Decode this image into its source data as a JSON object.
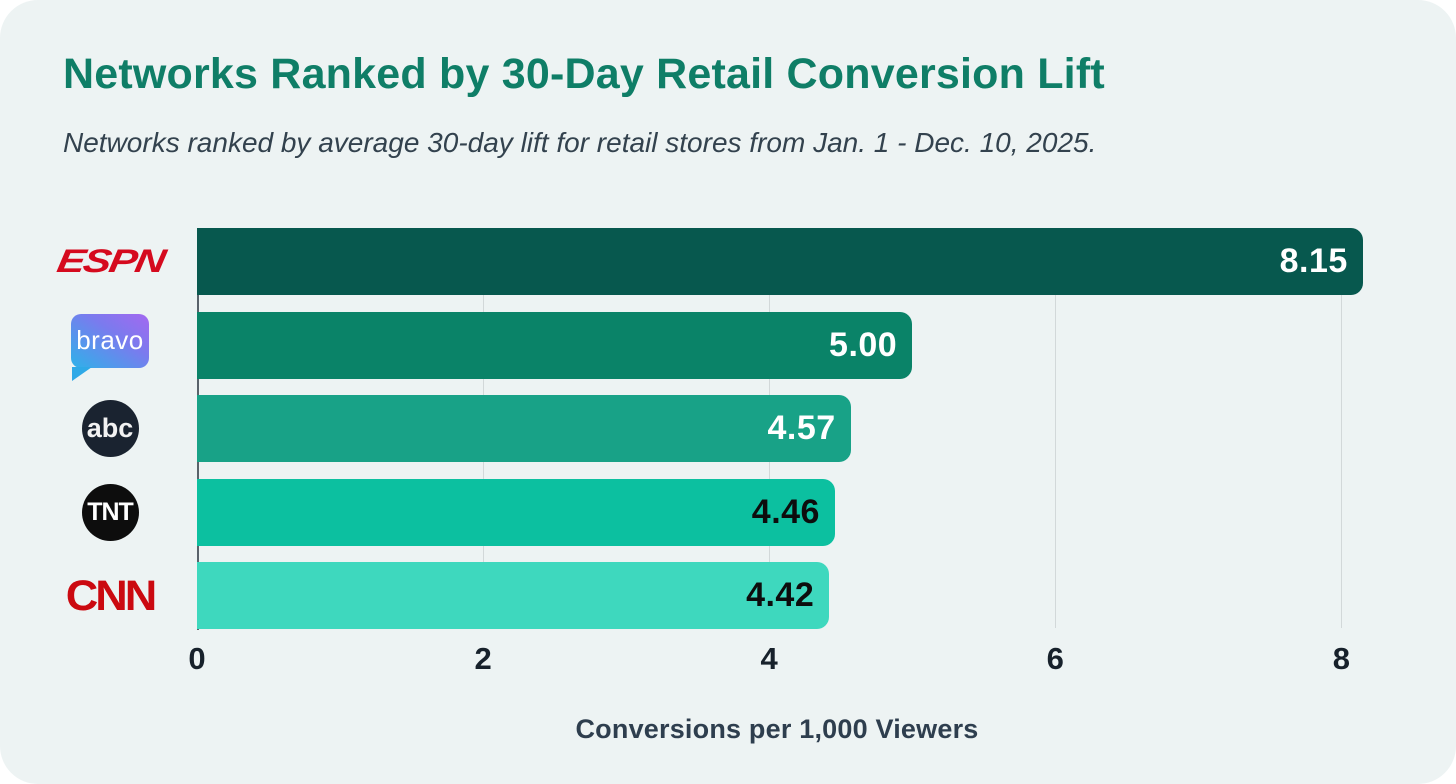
{
  "page": {
    "title": "Networks Ranked by 30-Day Retail Conversion Lift",
    "subtitle": "Networks ranked by average 30-day lift for retail stores from Jan. 1 - Dec. 10, 2025."
  },
  "style": {
    "card_background": "#edf3f3",
    "title_color": "#0f7e67",
    "subtitle_color": "#33424e",
    "gridline_color": "#d2d8d9",
    "axis_line_color": "#59626a",
    "tick_label_color": "#17212b",
    "axis_title_color": "#2e3e4e"
  },
  "chart_data": {
    "type": "bar",
    "orientation": "horizontal",
    "title": "Networks Ranked by 30-Day Retail Conversion Lift",
    "subtitle": "Networks ranked by average 30-day lift for retail stores from Jan. 1 - Dec. 10, 2025.",
    "categories": [
      "ESPN",
      "Bravo",
      "ABC",
      "TNT",
      "CNN"
    ],
    "values": [
      8.15,
      5.0,
      4.57,
      4.46,
      4.42
    ],
    "value_labels": [
      "8.15",
      "5.00",
      "4.57",
      "4.46",
      "4.42"
    ],
    "bar_colors": [
      "#07584e",
      "#0a8368",
      "#18a287",
      "#0cc0a0",
      "#3ed8be"
    ],
    "value_label_colors": [
      "#ffffff",
      "#ffffff",
      "#ffffff",
      "#0d0d0d",
      "#0d0d0d"
    ],
    "logos": [
      {
        "style": "espn",
        "text": "ESPN",
        "color": "#d50a1e"
      },
      {
        "style": "bravo",
        "text": "bravo",
        "gradient": [
          "#2eb2e9",
          "#a468f0"
        ]
      },
      {
        "style": "abc",
        "text": "abc",
        "bg": "#1a2330"
      },
      {
        "style": "tnt",
        "text": "TNT",
        "bg": "#0d0d0d"
      },
      {
        "style": "cnn",
        "text": "CNN",
        "color": "#cb0910"
      }
    ],
    "xlabel": "Conversions per 1,000 Viewers",
    "x_ticks": [
      "0",
      "2",
      "4",
      "6",
      "8"
    ],
    "xlim": [
      0,
      8.34
    ],
    "grid": "vertical",
    "legend": "none"
  }
}
